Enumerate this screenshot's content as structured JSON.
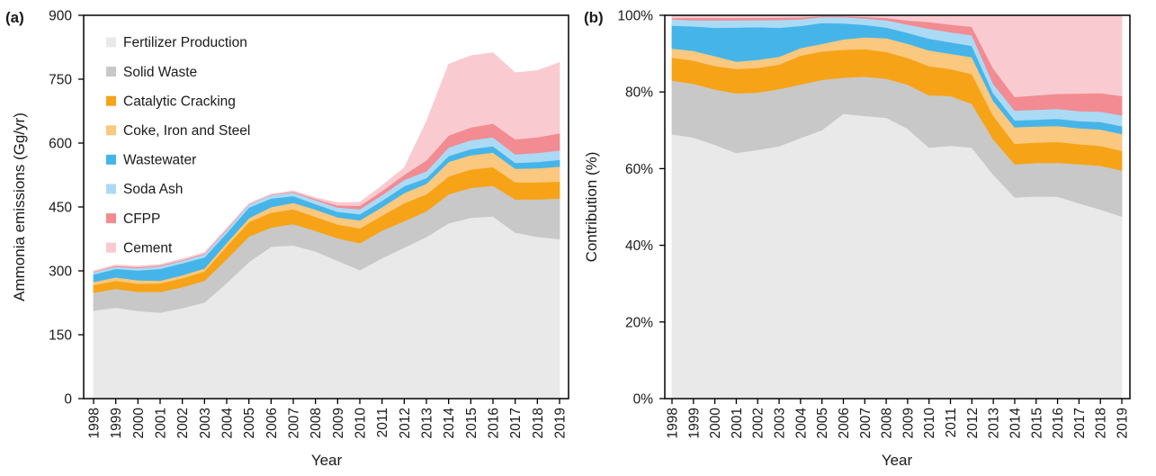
{
  "panels": {
    "a": {
      "label": "(a)",
      "ylabel": "Ammonia emissions (Gg/yr)",
      "xlabel": "Year"
    },
    "b": {
      "label": "(b)",
      "ylabel": "Contribution (%)",
      "xlabel": "Year"
    }
  },
  "chart_data": [
    {
      "id": "a",
      "type": "area",
      "stacked": true,
      "title": "",
      "xlabel": "Year",
      "ylabel": "Ammonia emissions (Gg/yr)",
      "units": "Gg/yr",
      "grid": false,
      "legend_position": "inside-top-left",
      "x": [
        1998,
        1999,
        2000,
        2001,
        2002,
        2003,
        2004,
        2005,
        2006,
        2007,
        2008,
        2009,
        2010,
        2011,
        2012,
        2013,
        2014,
        2015,
        2016,
        2017,
        2018,
        2019
      ],
      "ylim": [
        0,
        900
      ],
      "yticks": {
        "values": [
          0,
          150,
          300,
          450,
          600,
          750,
          900
        ],
        "labels": [
          "0",
          "150",
          "300",
          "450",
          "600",
          "750",
          "900"
        ]
      },
      "series": [
        {
          "name": "Fertilizer Production",
          "color": "#e9e9e9",
          "values": [
            207,
            214,
            206,
            202,
            213,
            226,
            272,
            321,
            357,
            360,
            346,
            324,
            302,
            330,
            355,
            380,
            412,
            425,
            428,
            390,
            380,
            375
          ]
        },
        {
          "name": "Solid Waste",
          "color": "#c8c8c8",
          "values": [
            42,
            44,
            45,
            49,
            49,
            51,
            56,
            60,
            45,
            50,
            48,
            53,
            63,
            65,
            62,
            60,
            68,
            70,
            72,
            78,
            88,
            95
          ]
        },
        {
          "name": "Catalytic Cracking",
          "color": "#f7a318",
          "values": [
            18,
            19,
            19,
            20,
            21,
            22,
            30,
            34,
            35,
            35,
            33,
            32,
            35,
            35,
            42,
            40,
            42,
            43,
            44,
            40,
            40,
            40
          ]
        },
        {
          "name": "Coke, Iron and Steel",
          "color": "#fac87e",
          "values": [
            7,
            8,
            8,
            6,
            7,
            7,
            8,
            9,
            13,
            15,
            17,
            17,
            19,
            20,
            24,
            25,
            34,
            34,
            34,
            32,
            33,
            35
          ]
        },
        {
          "name": "Wastewater",
          "color": "#45b5e9",
          "values": [
            18,
            20,
            23,
            28,
            28,
            26,
            23,
            25,
            20,
            16,
            13,
            13,
            14,
            15,
            16,
            13,
            14,
            14,
            15,
            14,
            15,
            16
          ]
        },
        {
          "name": "Soda Ash",
          "color": "#abdaf5",
          "values": [
            5,
            5,
            6,
            6,
            6,
            7,
            7,
            7,
            8,
            8,
            9,
            10,
            12,
            13,
            15,
            16,
            20,
            21,
            21,
            20,
            21,
            22
          ]
        },
        {
          "name": "CFPP",
          "color": "#f28b92",
          "values": [
            1,
            2,
            2,
            2,
            2,
            2,
            2,
            1,
            1,
            2,
            3,
            5,
            8,
            10,
            12,
            26,
            28,
            30,
            32,
            35,
            37,
            40
          ]
        },
        {
          "name": "Cement",
          "color": "#f9cbd0",
          "values": [
            2,
            2,
            2,
            2,
            2,
            2,
            2,
            1,
            1,
            2,
            3,
            6,
            8,
            12,
            16,
            90,
            167,
            168,
            166,
            156,
            156,
            166
          ]
        }
      ]
    },
    {
      "id": "b",
      "type": "area",
      "stacked": true,
      "normalized": true,
      "series_from": 0,
      "title": "",
      "xlabel": "Year",
      "ylabel": "Contribution (%)",
      "units": "%",
      "grid": false,
      "x": [
        1998,
        1999,
        2000,
        2001,
        2002,
        2003,
        2004,
        2005,
        2006,
        2007,
        2008,
        2009,
        2010,
        2011,
        2012,
        2013,
        2014,
        2015,
        2016,
        2017,
        2018,
        2019
      ],
      "ylim": [
        0,
        100
      ],
      "yticks": {
        "values": [
          0,
          20,
          40,
          60,
          80,
          100
        ],
        "labels": [
          "0%",
          "20%",
          "40%",
          "60%",
          "80%",
          "100%"
        ]
      }
    }
  ]
}
